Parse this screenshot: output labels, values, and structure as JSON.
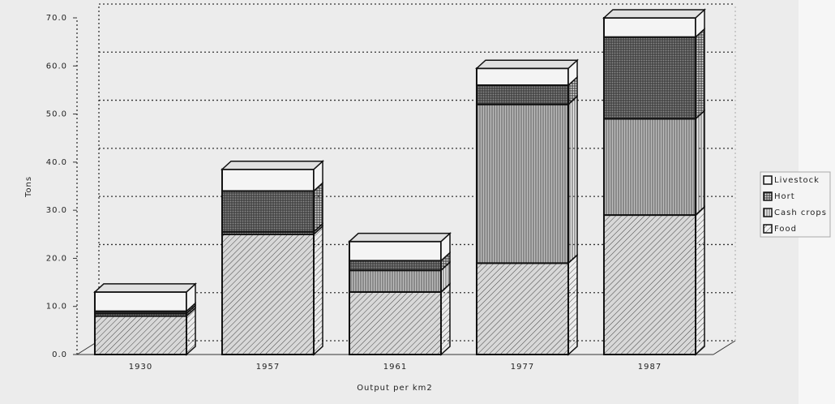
{
  "chart_data": {
    "type": "bar3d_stacked",
    "y_label": "Tons",
    "x_label": "Output per km2",
    "categories": [
      "1930",
      "1957",
      "1961",
      "1977",
      "1987"
    ],
    "series": [
      {
        "name": "Food",
        "color": "#d8d8d8",
        "pattern": "diagonal",
        "values": [
          8,
          25,
          13,
          19,
          29
        ]
      },
      {
        "name": "Cash crops",
        "color": "#bdbdbd",
        "pattern": "vertical",
        "values": [
          0.5,
          0.5,
          4.5,
          33,
          20
        ]
      },
      {
        "name": "Hort",
        "color": "#8a8a8a",
        "pattern": "crosshatch",
        "values": [
          0.5,
          8.5,
          2,
          4,
          17
        ]
      },
      {
        "name": "Livestock",
        "color": "#f4f4f4",
        "pattern": "none",
        "values": [
          4,
          4.5,
          4,
          3.5,
          4
        ]
      }
    ],
    "ylim": [
      0,
      70
    ],
    "yticks": [
      {
        "value": 0,
        "label": "0.0"
      },
      {
        "value": 10,
        "label": "10.0"
      },
      {
        "value": 20,
        "label": "20.0"
      },
      {
        "value": 30,
        "label": "30.0"
      },
      {
        "value": 40,
        "label": "40.0"
      },
      {
        "value": 50,
        "label": "50.0"
      },
      {
        "value": 60,
        "label": "60.0"
      },
      {
        "value": 70,
        "label": "70.0"
      }
    ],
    "grid": true,
    "legend": "right"
  }
}
